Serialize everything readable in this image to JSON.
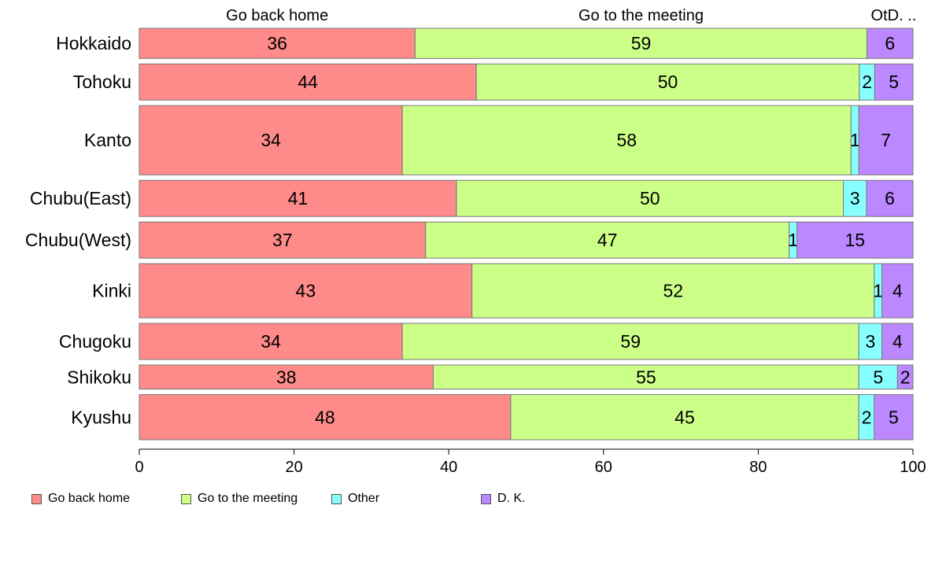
{
  "chart_data": {
    "type": "bar",
    "orientation": "horizontal",
    "stacked": true,
    "categories": [
      "Hokkaido",
      "Tohoku",
      "Kanto",
      "Chubu(East)",
      "Chubu(West)",
      "Kinki",
      "Chugoku",
      "Shikoku",
      "Kyushu"
    ],
    "series": [
      {
        "name": "Go back home",
        "color": "#FF8A8A",
        "values": [
          36,
          44,
          34,
          41,
          37,
          43,
          34,
          38,
          48
        ],
        "labels": [
          "36",
          "44",
          "34",
          "41",
          "37",
          "43",
          "34",
          "38",
          "48"
        ]
      },
      {
        "name": "Go to the meeting",
        "color": "#CCFF88",
        "values": [
          59,
          50,
          58,
          50,
          47,
          52,
          59,
          55,
          45
        ],
        "labels": [
          "59",
          "50",
          "58",
          "50",
          "47",
          "52",
          "59",
          "55",
          "45"
        ]
      },
      {
        "name": "Other",
        "color": "#88FFFF",
        "values": [
          0,
          2,
          1,
          3,
          1,
          1,
          3,
          5,
          2
        ],
        "labels": [
          "",
          "2",
          "1",
          "3",
          "1",
          "1",
          "3",
          "5",
          "2"
        ]
      },
      {
        "name": "D. K.",
        "color": "#BB88FF",
        "values": [
          6,
          5,
          7,
          6,
          15,
          4,
          4,
          2,
          5
        ],
        "labels": [
          "6",
          "5",
          "7",
          "6",
          "15",
          "4",
          "4",
          "2",
          "5"
        ]
      }
    ],
    "row_weights": [
      1.0,
      1.2,
      2.3,
      1.2,
      1.2,
      1.8,
      1.2,
      0.8,
      1.5
    ],
    "top_labels": [
      "Go back home",
      "Go to the meeting",
      "OtD. .."
    ],
    "xlim": [
      0,
      100
    ],
    "xticks": [
      "0",
      "20",
      "40",
      "60",
      "80",
      "100"
    ],
    "legend_position": "bottom"
  }
}
